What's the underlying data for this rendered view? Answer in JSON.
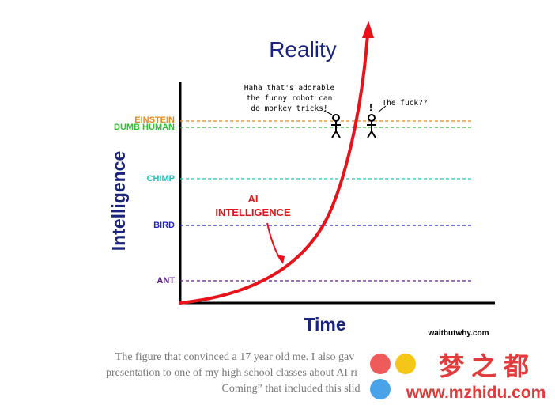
{
  "title": "Reality",
  "y_axis_label": "Intelligence",
  "x_axis_label": "Time",
  "levels": [
    {
      "label": "EINSTEIN",
      "color": "#e8891c"
    },
    {
      "label": "DUMB HUMAN",
      "color": "#2fbf2f"
    },
    {
      "label": "CHIMP",
      "color": "#1fc6b8"
    },
    {
      "label": "BIRD",
      "color": "#2424c8"
    },
    {
      "label": "ANT",
      "color": "#5a1a8a"
    }
  ],
  "curve_label": [
    "AI",
    "INTELLIGENCE"
  ],
  "speech": [
    {
      "lines": [
        "Haha that's adorable",
        "the funny robot can",
        "do monkey tricks!"
      ]
    },
    {
      "lines": [
        "The fuck??"
      ]
    }
  ],
  "exclaim": "!",
  "credit": "waitbutwhy.com",
  "caption": [
    "The figure that convinced a 17 year old me. I also gav",
    "presentation to one of my high school classes about AI ri",
    "Coming” that included this slid"
  ],
  "watermark": {
    "name": "梦 之 都",
    "url": "www.mzhidu.com"
  }
}
